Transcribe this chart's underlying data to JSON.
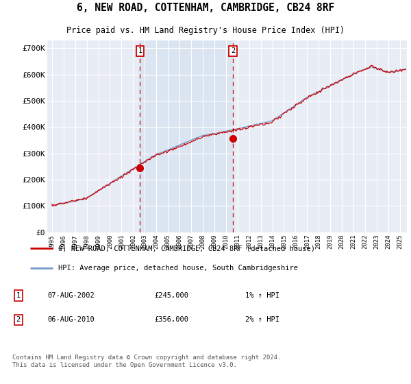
{
  "title": "6, NEW ROAD, COTTENHAM, CAMBRIDGE, CB24 8RF",
  "subtitle": "Price paid vs. HM Land Registry's House Price Index (HPI)",
  "plot_bg_color": "#e8edf5",
  "grid_color": "#ffffff",
  "ylabel_ticks": [
    "£0",
    "£100K",
    "£200K",
    "£300K",
    "£400K",
    "£500K",
    "£600K",
    "£700K"
  ],
  "ytick_vals": [
    0,
    100000,
    200000,
    300000,
    400000,
    500000,
    600000,
    700000
  ],
  "ylim": [
    0,
    730000
  ],
  "xlim_start": 1994.6,
  "xlim_end": 2025.6,
  "marker1_x": 2002.6,
  "marker1_y": 245000,
  "marker2_x": 2010.6,
  "marker2_y": 356000,
  "legend_line1": "6, NEW ROAD, COTTENHAM, CAMBRIDGE, CB24 8RF (detached house)",
  "legend_line2": "HPI: Average price, detached house, South Cambridgeshire",
  "footer": "Contains HM Land Registry data © Crown copyright and database right 2024.\nThis data is licensed under the Open Government Licence v3.0.",
  "red_color": "#cc0000",
  "blue_color": "#7799cc",
  "shade_color": "#d8e4f0"
}
